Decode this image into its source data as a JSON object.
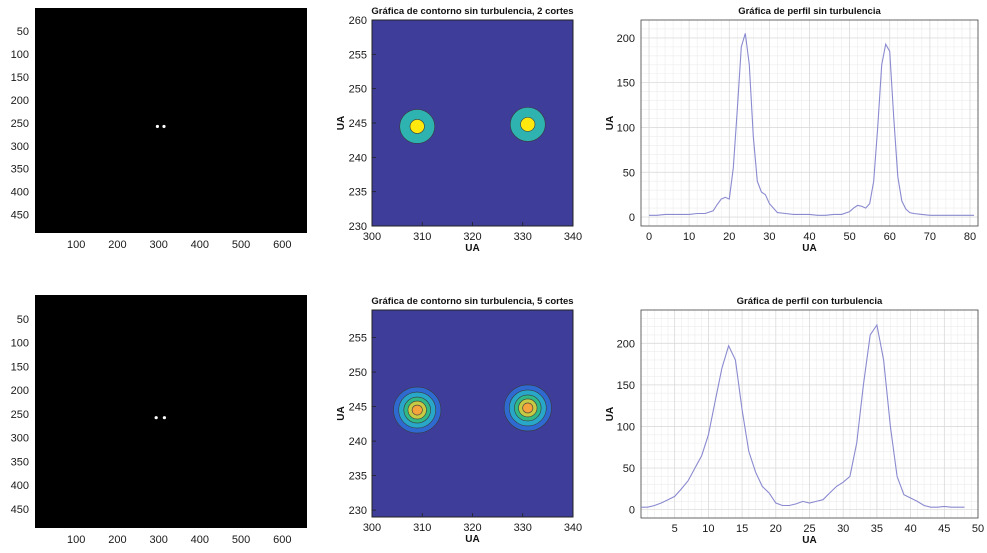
{
  "chart_data": [
    {
      "type": "heatmap",
      "xticks": [
        100,
        200,
        300,
        400,
        500,
        600
      ],
      "yticks": [
        50,
        100,
        150,
        200,
        250,
        300,
        350,
        400,
        450
      ],
      "xlim": [
        0,
        660
      ],
      "ylim": [
        0,
        490
      ],
      "spots": [
        {
          "x": 297,
          "y": 258
        },
        {
          "x": 313,
          "y": 258
        }
      ]
    },
    {
      "type": "heatmap",
      "title": "Gráfica de contorno sin turbulencia, 2 cortes",
      "xlabel": "UA",
      "ylabel": "UA",
      "xlim": [
        300,
        340
      ],
      "ylim": [
        230,
        260
      ],
      "xticks": [
        300,
        310,
        320,
        330,
        340
      ],
      "yticks": [
        230,
        235,
        240,
        245,
        250,
        255,
        260
      ],
      "levels": 2,
      "peaks": [
        {
          "x": 309,
          "y": 244.5
        },
        {
          "x": 331,
          "y": 244.8
        }
      ]
    },
    {
      "type": "line",
      "title": "Gráfica de perfil sin turbulencia",
      "xlabel": "UA",
      "ylabel": "UA",
      "xlim": [
        -2,
        82
      ],
      "ylim": [
        -10,
        220
      ],
      "xticks": [
        0,
        10,
        20,
        30,
        40,
        50,
        60,
        70,
        80
      ],
      "yticks": [
        0,
        50,
        100,
        150,
        200
      ],
      "grid": true,
      "series": [
        {
          "x": [
            0,
            2,
            4,
            6,
            8,
            10,
            12,
            14,
            16,
            17,
            18,
            19,
            20,
            21,
            22,
            23,
            24,
            25,
            26,
            27,
            28,
            29,
            30,
            32,
            34,
            36,
            38,
            40,
            42,
            44,
            46,
            48,
            50,
            51,
            52,
            53,
            54,
            55,
            56,
            57,
            58,
            59,
            60,
            61,
            62,
            63,
            64,
            65,
            66,
            68,
            70,
            72,
            74,
            76,
            78,
            80,
            81
          ],
          "y": [
            2,
            2,
            3,
            3,
            3,
            3,
            4,
            4,
            7,
            14,
            20,
            22,
            20,
            55,
            120,
            190,
            205,
            170,
            90,
            40,
            28,
            25,
            15,
            5,
            4,
            3,
            3,
            3,
            2,
            2,
            3,
            3,
            6,
            10,
            13,
            12,
            10,
            15,
            40,
            100,
            170,
            193,
            185,
            110,
            45,
            18,
            9,
            5,
            4,
            3,
            2,
            2,
            2,
            2,
            2,
            2,
            2
          ],
          "color": "#8a8ad0"
        }
      ]
    },
    {
      "type": "heatmap",
      "xticks": [
        100,
        200,
        300,
        400,
        500,
        600
      ],
      "yticks": [
        50,
        100,
        150,
        200,
        250,
        300,
        350,
        400,
        450
      ],
      "xlim": [
        0,
        660
      ],
      "ylim": [
        0,
        490
      ],
      "spots": [
        {
          "x": 294,
          "y": 258
        },
        {
          "x": 314,
          "y": 258
        }
      ]
    },
    {
      "type": "heatmap",
      "title": "Gráfica de contorno sin turbulencia, 5 cortes",
      "xlabel": "UA",
      "ylabel": "UA",
      "xlim": [
        300,
        340
      ],
      "ylim": [
        229,
        259
      ],
      "xticks": [
        300,
        310,
        320,
        330,
        340
      ],
      "yticks": [
        230,
        235,
        240,
        245,
        250,
        255
      ],
      "levels": 5,
      "peaks": [
        {
          "x": 309,
          "y": 244.5
        },
        {
          "x": 331,
          "y": 244.8
        }
      ]
    },
    {
      "type": "line",
      "title": "Gráfica de perfil con turbulencia",
      "xlabel": "UA",
      "ylabel": "UA",
      "xlim": [
        0,
        50
      ],
      "ylim": [
        -10,
        240
      ],
      "xticks": [
        5,
        10,
        15,
        20,
        25,
        30,
        35,
        40,
        45,
        50
      ],
      "yticks": [
        0,
        50,
        100,
        150,
        200
      ],
      "grid": true,
      "series": [
        {
          "x": [
            0,
            1,
            2,
            3,
            4,
            5,
            6,
            7,
            8,
            9,
            10,
            11,
            12,
            13,
            14,
            15,
            16,
            17,
            18,
            19,
            20,
            21,
            22,
            23,
            24,
            25,
            26,
            27,
            28,
            29,
            30,
            31,
            32,
            33,
            34,
            35,
            36,
            37,
            38,
            39,
            40,
            41,
            42,
            43,
            44,
            45,
            46,
            47,
            48
          ],
          "y": [
            3,
            3,
            5,
            8,
            12,
            16,
            25,
            35,
            50,
            65,
            90,
            130,
            170,
            197,
            180,
            120,
            70,
            45,
            28,
            20,
            8,
            5,
            5,
            7,
            10,
            8,
            10,
            12,
            20,
            28,
            33,
            40,
            80,
            150,
            210,
            222,
            180,
            100,
            40,
            18,
            14,
            10,
            5,
            3,
            3,
            4,
            3,
            3,
            3
          ],
          "color": "#8a8ad0"
        }
      ]
    }
  ]
}
